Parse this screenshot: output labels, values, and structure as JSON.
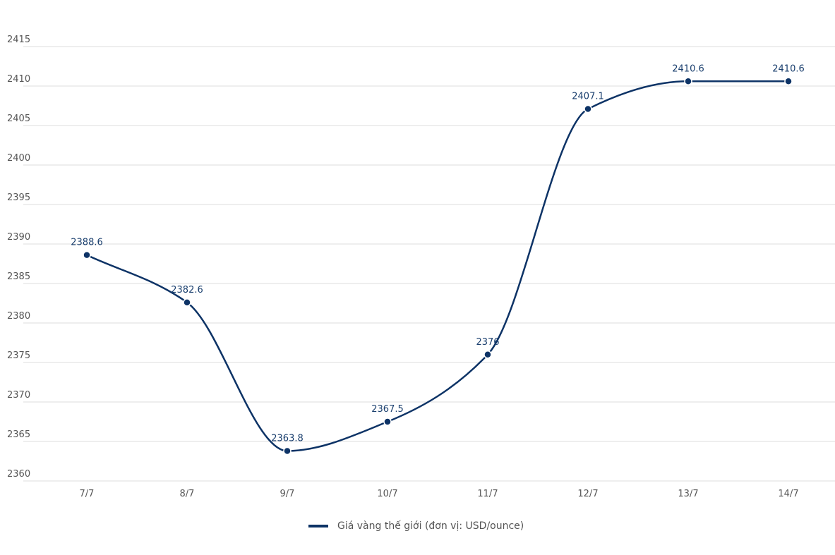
{
  "chart_data": {
    "type": "line",
    "title": "",
    "xlabel": "",
    "ylabel": "",
    "categories": [
      "7/7",
      "8/7",
      "9/7",
      "10/7",
      "11/7",
      "12/7",
      "13/7",
      "14/7"
    ],
    "series": [
      {
        "name": "Giá vàng thế giới (đơn vị: USD/ounce)",
        "values": [
          2388.6,
          2382.6,
          2363.8,
          2367.5,
          2376,
          2407.1,
          2410.6,
          2410.6
        ],
        "labels": [
          "2388.6",
          "2382.6",
          "2363.8",
          "2367.5",
          "2376",
          "2407.1",
          "2410.6",
          "2410.6"
        ],
        "color": "#0d3366"
      }
    ],
    "ylim": [
      2360,
      2415
    ],
    "yticks": [
      2415,
      2410,
      2405,
      2400,
      2395,
      2390,
      2385,
      2380,
      2375,
      2370,
      2365,
      2360
    ],
    "grid": true,
    "smooth": true,
    "legend_position": "bottom"
  },
  "legend": {
    "label": "Giá vàng thế giới (đơn vị: USD/ounce)"
  }
}
